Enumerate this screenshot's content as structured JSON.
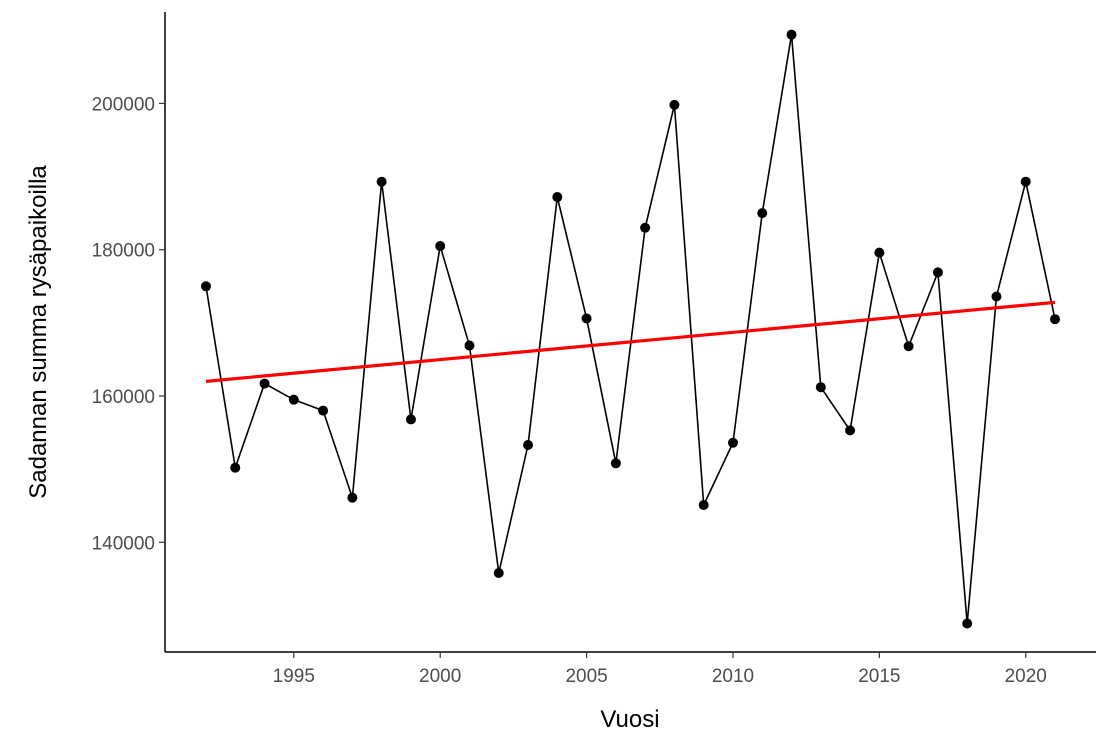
{
  "chart_data": {
    "type": "line",
    "xlabel": "Vuosi",
    "ylabel": "Sadannan summa rysäpaikoilla",
    "xlim": [
      1990.6,
      2022.4
    ],
    "ylim": [
      125000,
      212500
    ],
    "x_ticks": [
      1995,
      2000,
      2005,
      2010,
      2015,
      2020
    ],
    "y_ticks": [
      140000,
      160000,
      180000,
      200000
    ],
    "grid": false,
    "series": [
      {
        "color": "#000000",
        "marker": "circle",
        "x": [
          1992,
          1993,
          1994,
          1995,
          1996,
          1997,
          1998,
          1999,
          2000,
          2001,
          2002,
          2003,
          2004,
          2005,
          2006,
          2007,
          2008,
          2009,
          2010,
          2011,
          2012,
          2013,
          2014,
          2015,
          2016,
          2017,
          2018,
          2019,
          2020,
          2021
        ],
        "y": [
          175000,
          150200,
          161700,
          159500,
          158000,
          146100,
          189300,
          156800,
          180500,
          166900,
          135800,
          153300,
          187200,
          170600,
          150800,
          183000,
          199800,
          145100,
          153600,
          185000,
          209400,
          161200,
          155300,
          179600,
          166800,
          176900,
          128900,
          173600,
          189300,
          170500
        ]
      }
    ],
    "trend_line": {
      "color": "#ff0000",
      "x": [
        1992,
        2021
      ],
      "y": [
        162000,
        172800
      ]
    }
  }
}
